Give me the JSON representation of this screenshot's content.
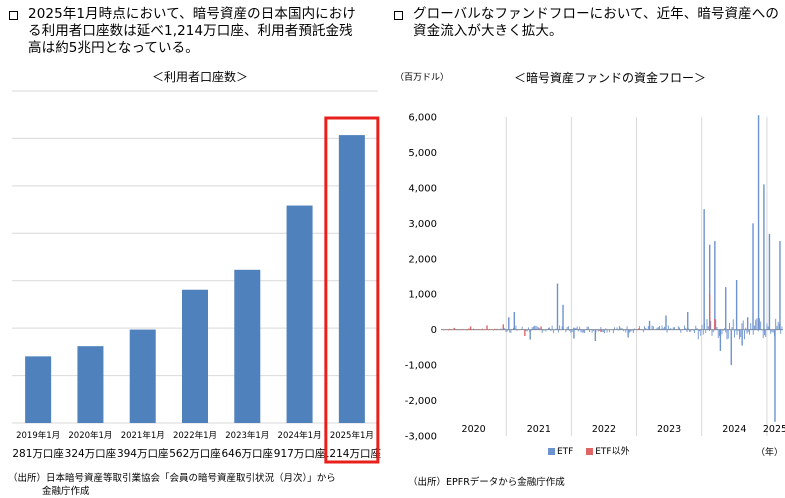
{
  "left": {
    "headline_lines": [
      "2025年1月時点において、暗号資産の日本国内におけ",
      "る利用者口座数は延べ1,214万口座、利用者預託金残",
      "高は約5兆円となっている。"
    ],
    "source_lines": [
      "（出所）日本暗号資産等取引業協会「会員の暗号資産取引状況（月次）」から",
      "金融庁作成"
    ]
  },
  "right": {
    "headline_lines": [
      "グローバルなファンドフローにおいて、近年、暗号資産への",
      "資金流入が大きく拡大。"
    ],
    "source": "（出所）EPFRデータから金融庁作成"
  },
  "colors": {
    "bar_blue": "#4f81bd",
    "etf_blue": "#6d93cf",
    "non_etf_red": "#e06666",
    "highlight_red": "#e8201c",
    "grid": "#d9d9d9"
  },
  "chart_data": [
    {
      "type": "bar",
      "title": "＜利用者口座数＞",
      "categories": [
        "2019年1月",
        "2020年1月",
        "2021年1月",
        "2022年1月",
        "2023年1月",
        "2024年1月",
        "2025年1月"
      ],
      "values": [
        281,
        324,
        394,
        562,
        646,
        917,
        1214
      ],
      "value_labels": [
        "281万口座",
        "324万口座",
        "394万口座",
        "562万口座",
        "646万口座",
        "917万口座",
        "1214万口座"
      ],
      "highlighted_category": "2025年1月",
      "ylim": [
        0,
        1400
      ],
      "grid": true
    },
    {
      "type": "bar",
      "title": "＜暗号資産ファンドの資金フロー＞",
      "ylabel": "（百万ドル）",
      "xlabel": "（年）",
      "y_ticks": [
        "6,000",
        "5,000",
        "4,000",
        "3,000",
        "2,000",
        "1,000",
        "0",
        "-1,000",
        "-2,000",
        "-3,000"
      ],
      "ylim": [
        -3000,
        6000
      ],
      "x_tick_labels": [
        "2020",
        "2021",
        "2022",
        "2023",
        "2024",
        "2025"
      ],
      "legend": [
        "ETF",
        "ETF以外"
      ],
      "legend_position": "bottom",
      "grid": true,
      "series": [
        {
          "name": "ETF",
          "x": [
            "2021-01",
            "2021-02",
            "2021-05",
            "2021-10",
            "2021-11",
            "2022-01",
            "2022-05",
            "2022-11",
            "2023-03",
            "2023-06",
            "2023-10",
            "2024-01",
            "2024-02",
            "2024-03",
            "2024-04",
            "2024-05",
            "2024-06",
            "2024-07",
            "2024-08",
            "2024-09",
            "2024-10",
            "2024-11",
            "2024-12",
            "2025-01",
            "2025-02",
            "2025-03"
          ],
          "values": [
            350,
            500,
            -280,
            1300,
            700,
            -250,
            -320,
            -220,
            250,
            400,
            500,
            3400,
            2400,
            2500,
            -600,
            1200,
            -1000,
            1400,
            -450,
            350,
            3000,
            6050,
            4100,
            2700,
            -2600,
            2500
          ]
        },
        {
          "name": "ETF以外",
          "x": [
            "2020-03",
            "2020-06",
            "2020-09",
            "2020-12",
            "2021-04",
            "2021-07",
            "2022-06",
            "2023-01",
            "2024-02",
            "2024-03"
          ],
          "values": [
            50,
            90,
            120,
            150,
            -180,
            90,
            -60,
            40,
            1000,
            300
          ]
        }
      ]
    }
  ]
}
